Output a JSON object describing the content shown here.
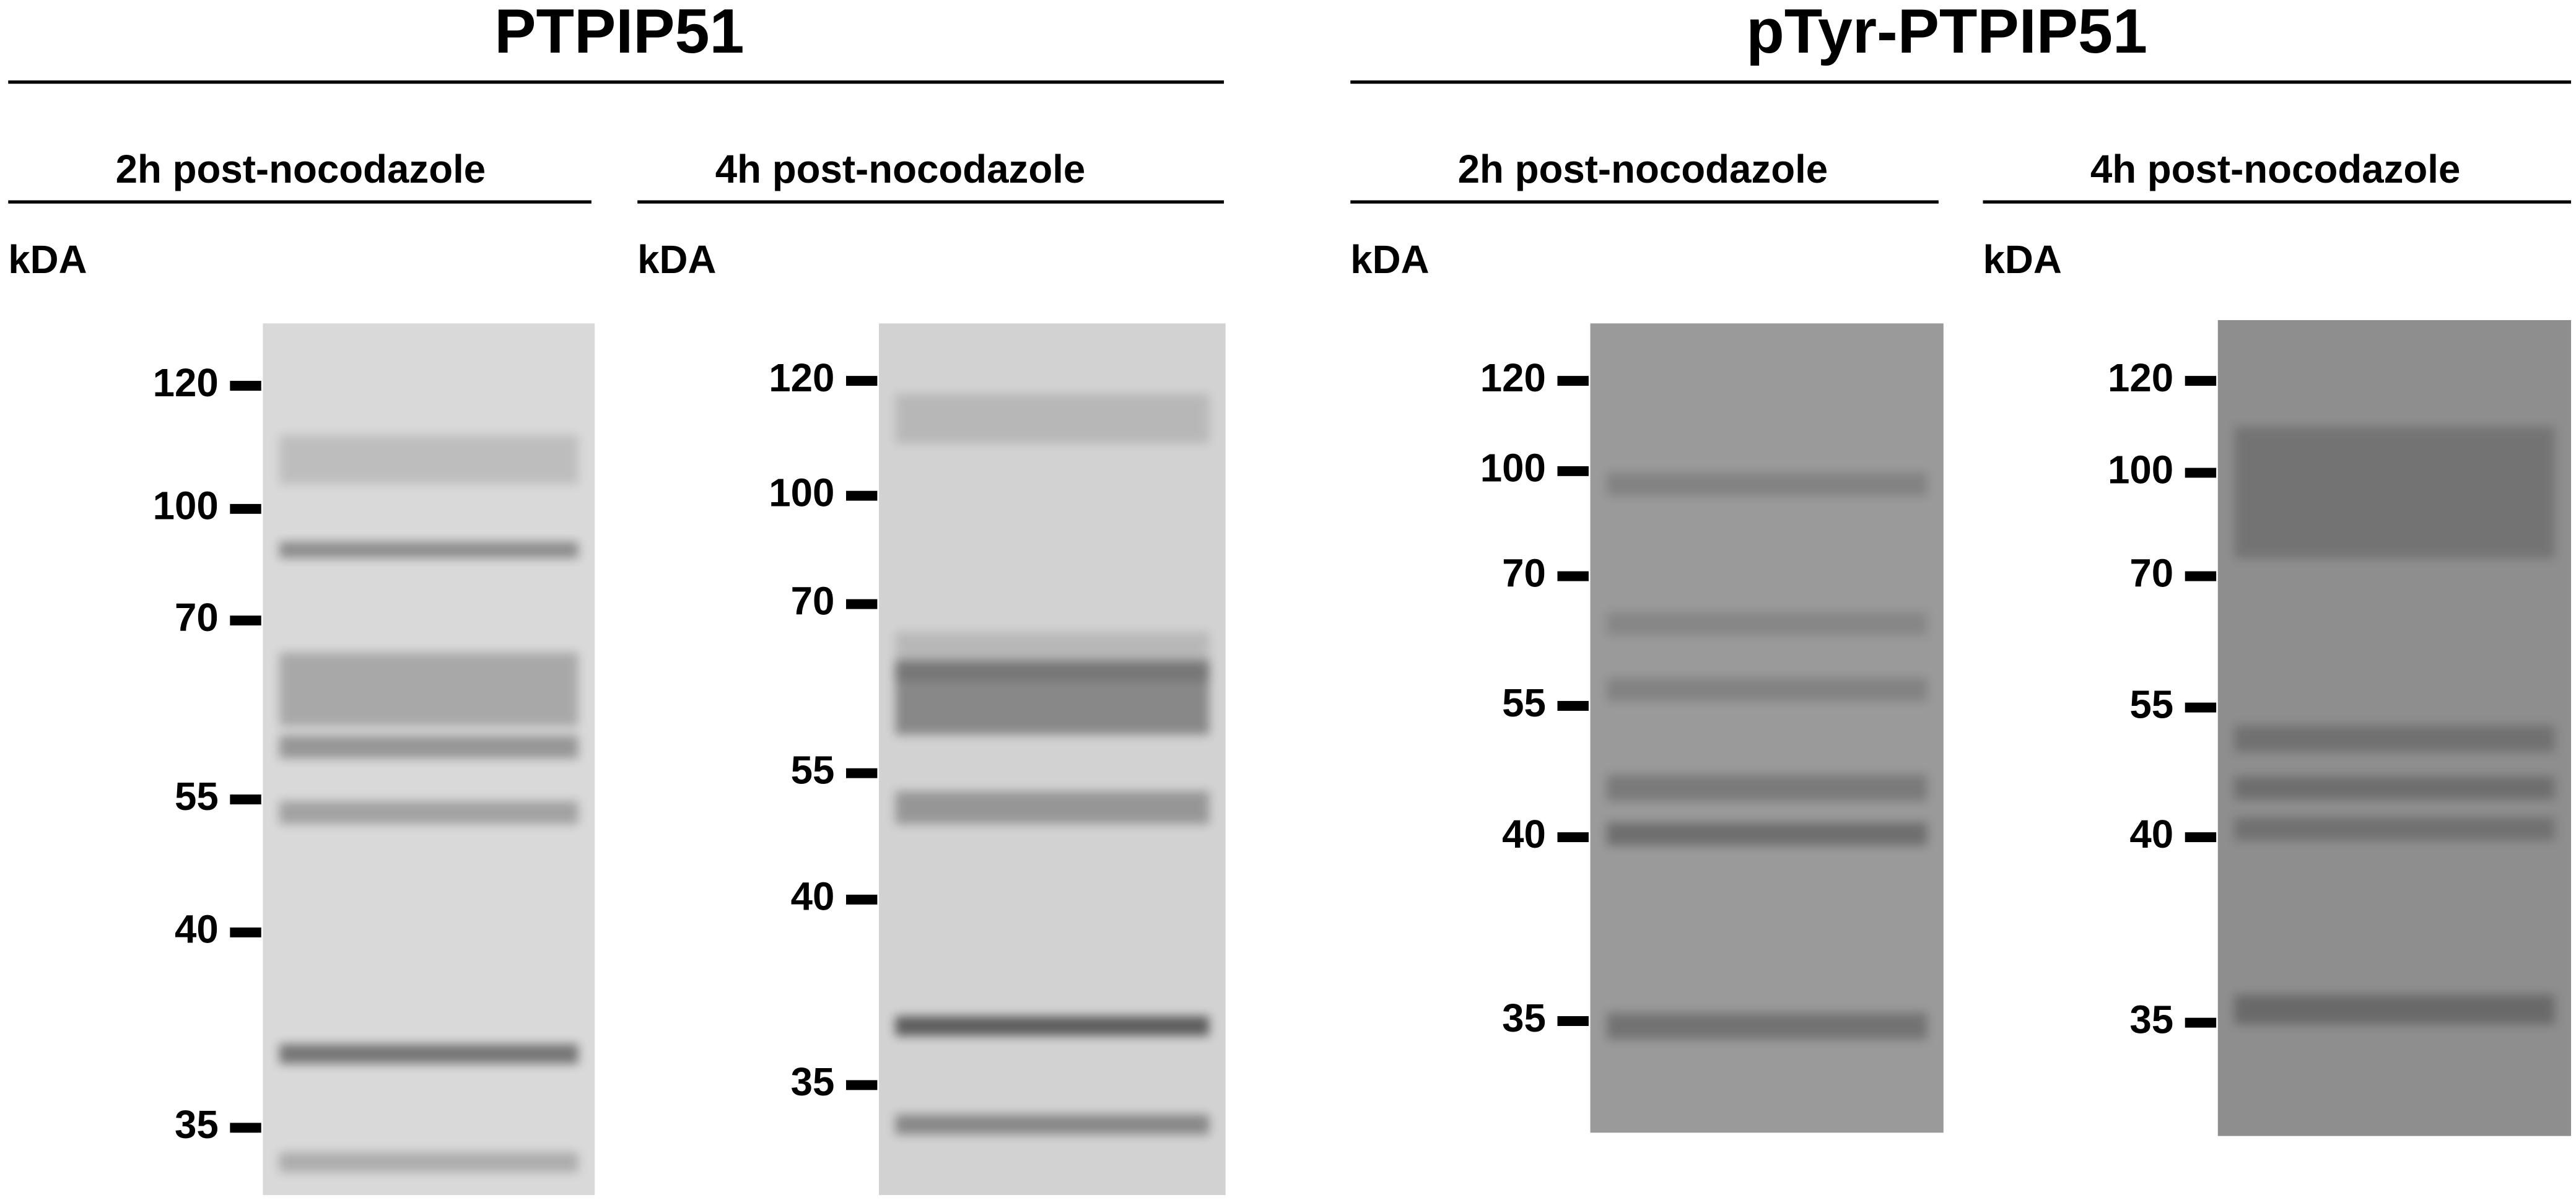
{
  "groups": [
    {
      "title": "PTPIP51",
      "panels": [
        {
          "subtitle": "2h post-nocodazole",
          "unit": "kDA",
          "markers": [
            120,
            100,
            70,
            55,
            40,
            35
          ]
        },
        {
          "subtitle": "4h post-nocodazole",
          "unit": "kDA",
          "markers": [
            120,
            100,
            70,
            55,
            40,
            35
          ]
        }
      ]
    },
    {
      "title": "pTyr-PTPIP51",
      "panels": [
        {
          "subtitle": "2h post-nocodazole",
          "unit": "kDA",
          "markers": [
            120,
            100,
            70,
            55,
            40,
            35
          ]
        },
        {
          "subtitle": "4h post-nocodazole",
          "unit": "kDA",
          "markers": [
            120,
            100,
            70,
            55,
            40,
            35
          ]
        }
      ]
    }
  ]
}
